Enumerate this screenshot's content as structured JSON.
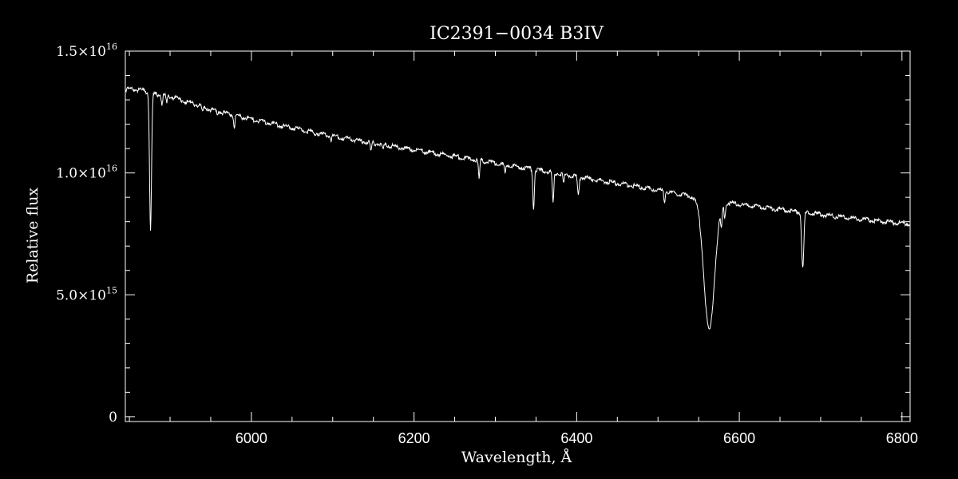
{
  "colors": {
    "background": "#000000",
    "foreground": "#ffffff"
  },
  "chart_data": {
    "type": "line",
    "title": "IC2391−0034   B3IV",
    "xlabel": "Wavelength, Å",
    "ylabel": "Relative flux",
    "xlim": [
      5845,
      6810
    ],
    "ylim": [
      -200000000000000.0,
      1.5e+16
    ],
    "x_ticks": [
      6000,
      6200,
      6400,
      6600,
      6800
    ],
    "x_tick_labels": [
      "6000",
      "6200",
      "6400",
      "6600",
      "6800"
    ],
    "y_ticks": [
      0,
      5000000000000000.0,
      1e+16,
      1.5e+16
    ],
    "y_tick_labels": [
      {
        "mantissa": "0",
        "exp": ""
      },
      {
        "mantissa": "5.0×10",
        "exp": "15"
      },
      {
        "mantissa": "1.0×10",
        "exp": "16"
      },
      {
        "mantissa": "1.5×10",
        "exp": "16"
      }
    ],
    "grid": false,
    "legend": "none",
    "series": [
      {
        "continuum": {
          "x": [
            5845,
            5865,
            5878,
            5890,
            5900,
            5950,
            6000,
            6100,
            6200,
            6300,
            6400,
            6500,
            6540,
            6600,
            6650,
            6700,
            6750,
            6810
          ],
          "y": [
            1.348e+16,
            1.345e+16,
            1.33e+16,
            1.325e+16,
            1.32e+16,
            1.265e+16,
            1.225e+16,
            1.155e+16,
            1.1e+16,
            1.045e+16,
            9900000000000000.0,
            9350000000000000.0,
            9100000000000000.0,
            8750000000000000.0,
            8550000000000000.0,
            8350000000000000.0,
            8150000000000000.0,
            7950000000000000.0
          ]
        },
        "absorption_lines": [
          {
            "x": 5876,
            "y_min": 7700000000000000.0,
            "width": 1.2
          },
          {
            "x": 5890,
            "y_min": 1.29e+16,
            "width": 0.8
          },
          {
            "x": 5896,
            "y_min": 1.29e+16,
            "width": 0.8
          },
          {
            "x": 5940,
            "y_min": 1.25e+16,
            "width": 0.8
          },
          {
            "x": 5958,
            "y_min": 1.245e+16,
            "width": 0.8
          },
          {
            "x": 5979,
            "y_min": 1.19e+16,
            "width": 0.8
          },
          {
            "x": 6078,
            "y_min": 1.165e+16,
            "width": 0.8
          },
          {
            "x": 6098,
            "y_min": 1.14e+16,
            "width": 0.8
          },
          {
            "x": 6147,
            "y_min": 1.09e+16,
            "width": 0.8
          },
          {
            "x": 6162,
            "y_min": 1.1e+16,
            "width": 0.8
          },
          {
            "x": 6280,
            "y_min": 9800000000000000.0,
            "width": 0.8
          },
          {
            "x": 6312,
            "y_min": 1e+16,
            "width": 0.8
          },
          {
            "x": 6347,
            "y_min": 8600000000000000.0,
            "width": 0.9
          },
          {
            "x": 6371,
            "y_min": 8800000000000000.0,
            "width": 0.9
          },
          {
            "x": 6384,
            "y_min": 9600000000000000.0,
            "width": 0.8
          },
          {
            "x": 6402,
            "y_min": 9100000000000000.0,
            "width": 0.9
          },
          {
            "x": 6508,
            "y_min": 8900000000000000.0,
            "width": 0.8
          },
          {
            "x": 6563,
            "y_min": 3600000000000000.0,
            "width": 6.5
          },
          {
            "x": 6578,
            "y_min": 8100000000000000.0,
            "width": 0.9
          },
          {
            "x": 6582,
            "y_min": 8300000000000000.0,
            "width": 0.9
          },
          {
            "x": 6678,
            "y_min": 6100000000000000.0,
            "width": 1.3
          },
          {
            "x": 6717,
            "y_min": 8200000000000000.0,
            "width": 0.8
          }
        ]
      }
    ]
  }
}
